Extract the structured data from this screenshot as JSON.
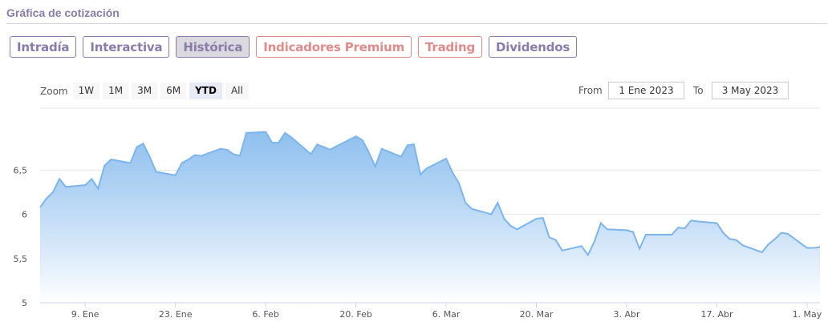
{
  "section": {
    "title": "Gráfica de cotización"
  },
  "tabs": [
    {
      "label": "Intradía",
      "active": false,
      "style": "default"
    },
    {
      "label": "Interactiva",
      "active": false,
      "style": "default"
    },
    {
      "label": "Histórica",
      "active": true,
      "style": "default"
    },
    {
      "label": "Indicadores Premium",
      "active": false,
      "style": "premium"
    },
    {
      "label": "Trading",
      "active": false,
      "style": "premium"
    },
    {
      "label": "Dividendos",
      "active": false,
      "style": "default"
    }
  ],
  "zoom": {
    "label": "Zoom",
    "options": [
      "1W",
      "1M",
      "3M",
      "6M",
      "YTD",
      "All"
    ],
    "selected": "YTD"
  },
  "range": {
    "from_label": "From",
    "from_value": "1 Ene 2023",
    "to_label": "To",
    "to_value": "3 May 2023"
  },
  "colors": {
    "accent": "#8a7ca8",
    "premium": "#e08a8a",
    "line": "#7cb5ec",
    "fill_top": "#7cb5ec",
    "fill_bottom": "#ffffff"
  },
  "chart_data": {
    "type": "area",
    "x_tick_labels": [
      "9. Ene",
      "23. Ene",
      "6. Feb",
      "20. Feb",
      "6. Mar",
      "20. Mar",
      "3. Abr",
      "17. Abr",
      "1. May"
    ],
    "y_tick_labels": [
      "5",
      "5,5",
      "6",
      "6,5"
    ],
    "ylim": [
      5,
      7.2
    ],
    "grid": true,
    "series": [
      {
        "x": [
          "2023-01-02",
          "2023-01-03",
          "2023-01-04",
          "2023-01-05",
          "2023-01-06",
          "2023-01-09",
          "2023-01-10",
          "2023-01-11",
          "2023-01-12",
          "2023-01-13",
          "2023-01-16",
          "2023-01-17",
          "2023-01-18",
          "2023-01-19",
          "2023-01-20",
          "2023-01-23",
          "2023-01-24",
          "2023-01-25",
          "2023-01-26",
          "2023-01-27",
          "2023-01-30",
          "2023-01-31",
          "2023-02-01",
          "2023-02-02",
          "2023-02-03",
          "2023-02-06",
          "2023-02-07",
          "2023-02-08",
          "2023-02-09",
          "2023-02-10",
          "2023-02-13",
          "2023-02-14",
          "2023-02-15",
          "2023-02-16",
          "2023-02-17",
          "2023-02-20",
          "2023-02-21",
          "2023-02-22",
          "2023-02-23",
          "2023-02-24",
          "2023-02-27",
          "2023-02-28",
          "2023-03-01",
          "2023-03-02",
          "2023-03-03",
          "2023-03-06",
          "2023-03-07",
          "2023-03-08",
          "2023-03-09",
          "2023-03-10",
          "2023-03-13",
          "2023-03-14",
          "2023-03-15",
          "2023-03-16",
          "2023-03-17",
          "2023-03-20",
          "2023-03-21",
          "2023-03-22",
          "2023-03-23",
          "2023-03-24",
          "2023-03-27",
          "2023-03-28",
          "2023-03-29",
          "2023-03-30",
          "2023-03-31",
          "2023-04-03",
          "2023-04-04",
          "2023-04-05",
          "2023-04-06",
          "2023-04-10",
          "2023-04-11",
          "2023-04-12",
          "2023-04-13",
          "2023-04-14",
          "2023-04-17",
          "2023-04-18",
          "2023-04-19",
          "2023-04-20",
          "2023-04-21",
          "2023-04-24",
          "2023-04-25",
          "2023-04-26",
          "2023-04-27",
          "2023-04-28",
          "2023-05-01",
          "2023-05-02",
          "2023-05-03"
        ],
        "values": [
          6.08,
          6.18,
          6.25,
          6.4,
          6.31,
          6.33,
          6.4,
          6.29,
          6.55,
          6.62,
          6.58,
          6.76,
          6.8,
          6.65,
          6.48,
          6.44,
          6.58,
          6.62,
          6.67,
          6.66,
          6.74,
          6.73,
          6.68,
          6.66,
          6.92,
          6.93,
          6.81,
          6.81,
          6.92,
          6.87,
          6.68,
          6.79,
          6.76,
          6.73,
          6.77,
          6.88,
          6.84,
          6.7,
          6.54,
          6.74,
          6.65,
          6.78,
          6.79,
          6.45,
          6.52,
          6.63,
          6.47,
          6.35,
          6.13,
          6.06,
          6.0,
          6.13,
          5.95,
          5.87,
          5.83,
          5.95,
          5.96,
          5.74,
          5.71,
          5.59,
          5.64,
          5.54,
          5.69,
          5.9,
          5.83,
          5.82,
          5.8,
          5.61,
          5.77,
          5.77,
          5.85,
          5.84,
          5.93,
          5.92,
          5.9,
          5.79,
          5.72,
          5.71,
          5.65,
          5.57,
          5.66,
          5.72,
          5.79,
          5.78,
          5.62,
          5.62,
          5.63
        ]
      }
    ]
  }
}
